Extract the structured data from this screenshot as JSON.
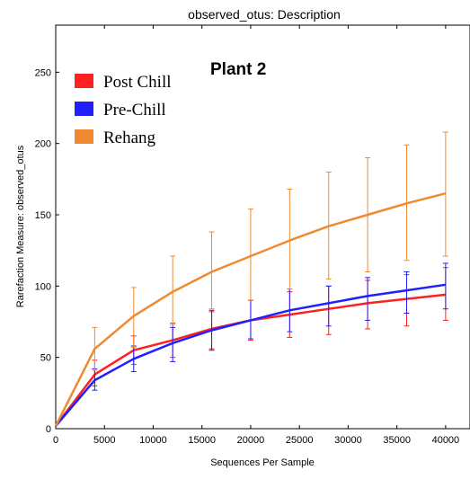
{
  "chart_data": {
    "type": "line",
    "title": "observed_otus: Description",
    "xlabel": "Sequences Per Sample",
    "ylabel": "Rarefaction Measure: observed_otus",
    "annotation": "Plant 2",
    "xlim": [
      0,
      42500
    ],
    "ylim": [
      0,
      283
    ],
    "x_ticks": [
      0,
      5000,
      10000,
      15000,
      20000,
      25000,
      30000,
      35000,
      40000
    ],
    "y_ticks": [
      0,
      50,
      100,
      150,
      200,
      250
    ],
    "legend_position": "top-left",
    "x": [
      10,
      4000,
      8000,
      12000,
      16000,
      20000,
      24000,
      28000,
      32000,
      36000,
      40000
    ],
    "series": [
      {
        "name": "Post Chill",
        "color": "#ff2020",
        "values": [
          2,
          38,
          55,
          62,
          70,
          76,
          80,
          84,
          88,
          91,
          94
        ],
        "err_low": [
          2,
          30,
          45,
          50,
          56,
          62,
          64,
          66,
          70,
          72,
          76
        ],
        "err_high": [
          2,
          48,
          65,
          74,
          82,
          90,
          96,
          100,
          104,
          108,
          113
        ]
      },
      {
        "name": "Pre-Chill",
        "color": "#2020ff",
        "values": [
          2,
          34,
          49,
          60,
          69,
          76,
          83,
          88,
          93,
          97,
          101
        ],
        "err_low": [
          2,
          27,
          40,
          47,
          55,
          63,
          68,
          72,
          76,
          81,
          84
        ],
        "err_high": [
          2,
          42,
          58,
          71,
          83,
          90,
          98,
          100,
          106,
          110,
          116
        ]
      },
      {
        "name": "Rehang",
        "color": "#f08a30",
        "values": [
          2,
          56,
          79,
          96,
          110,
          121,
          132,
          142,
          150,
          158,
          165
        ],
        "err_low": [
          2,
          41,
          57,
          73,
          84,
          90,
          98,
          105,
          110,
          118,
          121
        ],
        "err_high": [
          2,
          71,
          99,
          121,
          138,
          154,
          168,
          180,
          190,
          199,
          208
        ]
      }
    ]
  }
}
